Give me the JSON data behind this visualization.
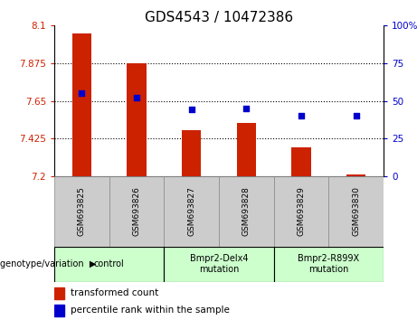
{
  "title": "GDS4543 / 10472386",
  "samples": [
    "GSM693825",
    "GSM693826",
    "GSM693827",
    "GSM693828",
    "GSM693829",
    "GSM693830"
  ],
  "bar_values": [
    8.055,
    7.875,
    7.475,
    7.52,
    7.37,
    7.21
  ],
  "percentile_values": [
    55,
    52,
    44,
    45,
    40,
    40
  ],
  "ymin": 7.2,
  "ymax": 8.1,
  "yticks": [
    7.2,
    7.425,
    7.65,
    7.875,
    8.1
  ],
  "ytick_labels": [
    "7.2",
    "7.425",
    "7.65",
    "7.875",
    "8.1"
  ],
  "right_yticks": [
    0,
    25,
    50,
    75,
    100
  ],
  "right_ytick_labels": [
    "0",
    "25",
    "50",
    "75",
    "100%"
  ],
  "bar_color": "#cc2200",
  "dot_color": "#0000cc",
  "groups": [
    {
      "label": "control",
      "span": [
        0,
        1
      ],
      "color": "#ccffcc"
    },
    {
      "label": "Bmpr2-Delx4\nmutation",
      "span": [
        2,
        3
      ],
      "color": "#ccffcc"
    },
    {
      "label": "Bmpr2-R899X\nmutation",
      "span": [
        4,
        5
      ],
      "color": "#ccffcc"
    }
  ],
  "legend_red_label": "transformed count",
  "legend_blue_label": "percentile rank within the sample",
  "genotype_label": "genotype/variation",
  "tick_bg_color": "#cccccc",
  "title_fontsize": 11,
  "axis_fontsize": 7.5,
  "label_fontsize": 7.5,
  "bar_width": 0.35
}
